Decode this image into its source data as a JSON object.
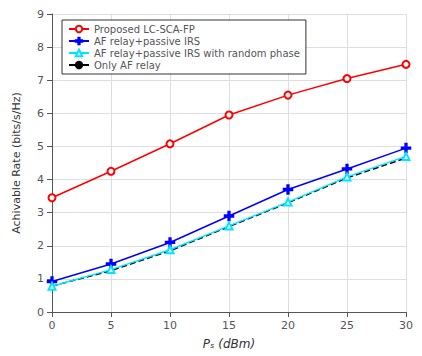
{
  "chart_data": {
    "type": "line",
    "xlabel": "Pₛ (dBm)",
    "ylabel": "Achivable Rate (bits/s/Hz)",
    "x": [
      0,
      5,
      10,
      15,
      20,
      25,
      30
    ],
    "series": [
      {
        "name": "Proposed LC-SCA-FP",
        "color": "#ff0000",
        "marker": "circle",
        "line_style": "solid",
        "values": [
          3.45,
          4.25,
          5.08,
          5.95,
          6.55,
          7.05,
          7.48
        ]
      },
      {
        "name": "AF relay+passive IRS",
        "color": "#0000ff",
        "marker": "plus",
        "line_style": "solid",
        "values": [
          0.92,
          1.45,
          2.1,
          2.9,
          3.7,
          4.32,
          4.95
        ]
      },
      {
        "name": "AF relay+passive IRS with random phase",
        "color": "#00e5ff",
        "marker": "triangle",
        "line_style": "solid",
        "values": [
          0.78,
          1.28,
          1.88,
          2.6,
          3.32,
          4.08,
          4.7
        ]
      },
      {
        "name": "Only AF relay",
        "color": "#000000",
        "marker": "none",
        "line_style": "dashed",
        "values": [
          0.78,
          1.25,
          1.85,
          2.58,
          3.3,
          4.05,
          4.65
        ]
      }
    ],
    "xlim": [
      0,
      30
    ],
    "ylim": [
      0,
      9
    ],
    "xticks": [
      0,
      5,
      10,
      15,
      20,
      25,
      30
    ],
    "yticks": [
      0,
      1,
      2,
      3,
      4,
      5,
      6,
      7,
      8,
      9
    ],
    "grid": true,
    "legend": "upper left"
  }
}
